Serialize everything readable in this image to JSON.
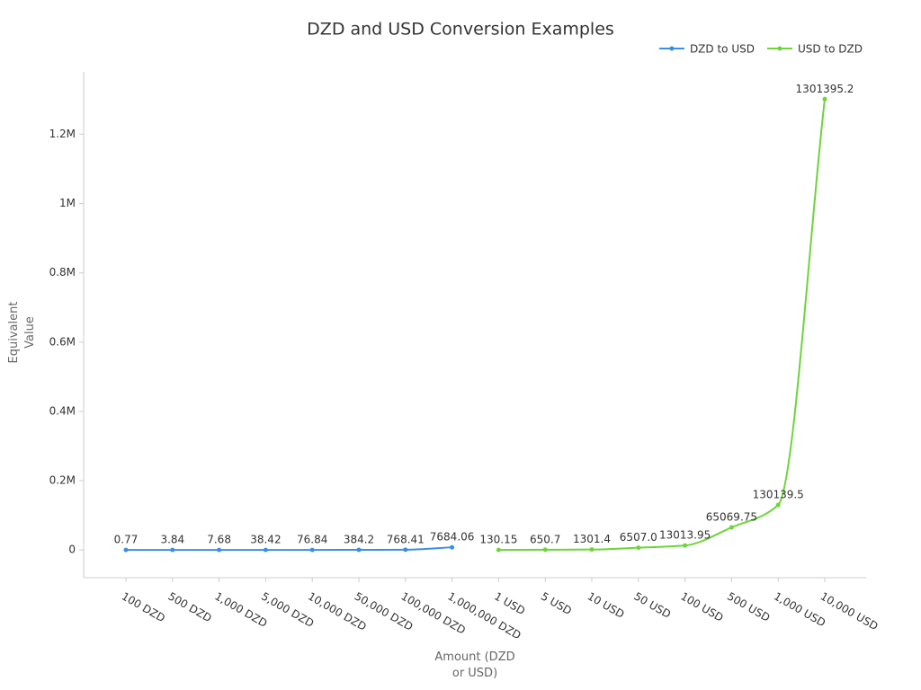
{
  "chart_data": {
    "type": "line",
    "title": "DZD and USD Conversion Examples",
    "x_label": "Amount (DZD or USD)",
    "y_label": "Equivalent Value",
    "categories": [
      "100 DZD",
      "500 DZD",
      "1,000 DZD",
      "5,000 DZD",
      "10,000 DZD",
      "50,000 DZD",
      "100,000 DZD",
      "1,000,000 DZD",
      "1 USD",
      "5 USD",
      "10 USD",
      "50 USD",
      "100 USD",
      "500 USD",
      "1,000 USD",
      "10,000 USD"
    ],
    "series": [
      {
        "name": "DZD to USD",
        "color": "#3b8fe0",
        "values": [
          0.77,
          3.84,
          7.68,
          38.42,
          76.84,
          384.2,
          768.41,
          7684.06,
          null,
          null,
          null,
          null,
          null,
          null,
          null,
          null
        ],
        "value_labels": [
          "0.77",
          "3.84",
          "7.68",
          "38.42",
          "76.84",
          "384.2",
          "768.41",
          "7684.06",
          null,
          null,
          null,
          null,
          null,
          null,
          null,
          null
        ]
      },
      {
        "name": "USD to DZD",
        "color": "#6dd43a",
        "values": [
          null,
          null,
          null,
          null,
          null,
          null,
          null,
          null,
          130.15,
          650.7,
          1301.4,
          6507.0,
          13013.95,
          65069.75,
          130139.5,
          1301395.2
        ],
        "value_labels": [
          null,
          null,
          null,
          null,
          null,
          null,
          null,
          null,
          "130.15",
          "650.7",
          "1301.4",
          "6507.0",
          "13013.95",
          "65069.75",
          "130139.5",
          "1301395.2"
        ]
      }
    ],
    "ylim": [
      -80000,
      1380000
    ],
    "yticks": [
      0,
      {
        "value": 200000,
        "label": "0.2M"
      },
      {
        "value": 400000,
        "label": "0.4M"
      },
      {
        "value": 600000,
        "label": "0.6M"
      },
      {
        "value": 800000,
        "label": "0.8M"
      },
      {
        "value": 1000000,
        "label": "1M"
      },
      {
        "value": 1200000,
        "label": "1.2M"
      }
    ],
    "legend": "top-right",
    "smooth": true
  }
}
